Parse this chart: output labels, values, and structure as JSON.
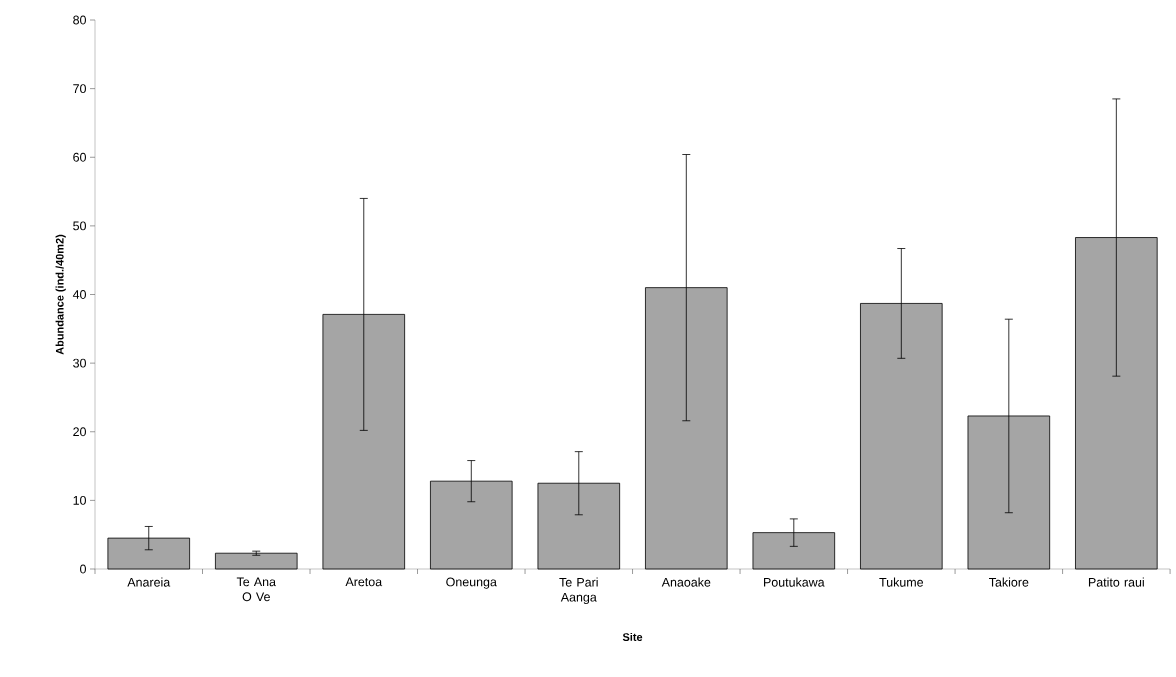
{
  "chart_data": {
    "type": "bar",
    "xlabel": "Site",
    "ylabel": "Abundance (ind./40m2)",
    "categories": [
      "Anareia",
      "Te Ana O Ve",
      "Aretoa",
      "Oneunga",
      "Te Pari Aanga",
      "Anaoake",
      "Poutukawa",
      "Tukume",
      "Takiore",
      "Patito raui"
    ],
    "values": [
      4.5,
      2.3,
      37.1,
      12.8,
      12.5,
      41.0,
      5.3,
      38.7,
      22.3,
      48.3
    ],
    "errors": [
      1.7,
      0.3,
      16.9,
      3.0,
      4.6,
      19.4,
      2.0,
      8.0,
      14.1,
      20.2
    ],
    "color": "#a5a5a5",
    "ylim": [
      0,
      80
    ],
    "yticks": [
      0,
      10,
      20,
      30,
      40,
      50,
      60,
      70,
      80
    ],
    "grid": false
  }
}
